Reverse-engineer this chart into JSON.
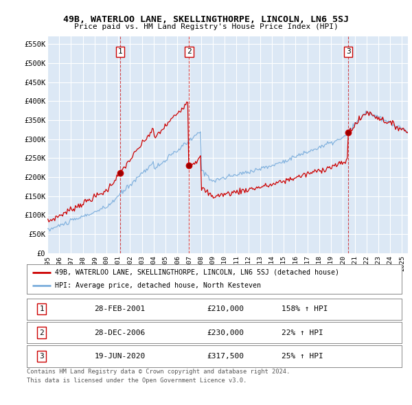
{
  "title": "49B, WATERLOO LANE, SKELLINGTHORPE, LINCOLN, LN6 5SJ",
  "subtitle": "Price paid vs. HM Land Registry's House Price Index (HPI)",
  "yticks": [
    0,
    50000,
    100000,
    150000,
    200000,
    250000,
    300000,
    350000,
    400000,
    450000,
    500000,
    550000
  ],
  "ytick_labels": [
    "£0",
    "£50K",
    "£100K",
    "£150K",
    "£200K",
    "£250K",
    "£300K",
    "£350K",
    "£400K",
    "£450K",
    "£500K",
    "£550K"
  ],
  "xmin": 1995.0,
  "xmax": 2025.5,
  "ymin": 0,
  "ymax": 570000,
  "background_color": "#dce8f5",
  "grid_color": "#ffffff",
  "red_color": "#cc0000",
  "blue_color": "#7aaddc",
  "sale_dates": [
    2001.163,
    2006.993,
    2020.464
  ],
  "sale_prices": [
    210000,
    230000,
    317500
  ],
  "sale_labels": [
    "1",
    "2",
    "3"
  ],
  "legend_line1": "49B, WATERLOO LANE, SKELLINGTHORPE, LINCOLN, LN6 5SJ (detached house)",
  "legend_line2": "HPI: Average price, detached house, North Kesteven",
  "table_rows": [
    [
      "1",
      "28-FEB-2001",
      "£210,000",
      "158% ↑ HPI"
    ],
    [
      "2",
      "28-DEC-2006",
      "£230,000",
      "22% ↑ HPI"
    ],
    [
      "3",
      "19-JUN-2020",
      "£317,500",
      "25% ↑ HPI"
    ]
  ],
  "footer_line1": "Contains HM Land Registry data © Crown copyright and database right 2024.",
  "footer_line2": "This data is licensed under the Open Government Licence v3.0."
}
